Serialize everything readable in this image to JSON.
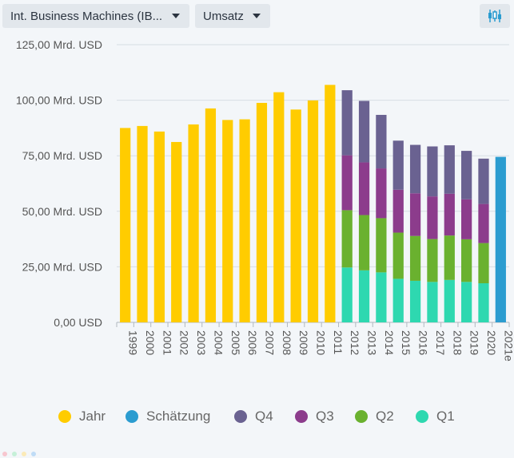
{
  "toolbar": {
    "company_label": "Int. Business Machines (IB...",
    "metric_label": "Umsatz",
    "settings_icon": "candlestick-chart-icon"
  },
  "colors": {
    "Jahr": "#ffcc00",
    "Schätzung": "#2b9cd0",
    "Q4": "#6a6291",
    "Q3": "#8c3c8c",
    "Q2": "#6ab12f",
    "Q1": "#2ed8b0",
    "grid": "#d6dde4",
    "text": "#555555"
  },
  "chart_data": {
    "type": "bar",
    "stacked": true,
    "ylim": [
      0,
      125
    ],
    "y_ticks": [
      {
        "value": 0,
        "label": "0,00 USD"
      },
      {
        "value": 25,
        "label": "25,00 Mrd. USD"
      },
      {
        "value": 50,
        "label": "50,00 Mrd. USD"
      },
      {
        "value": 75,
        "label": "75,00 Mrd. USD"
      },
      {
        "value": 100,
        "label": "100,00 Mrd. USD"
      },
      {
        "value": 125,
        "label": "125,00 Mrd. USD"
      }
    ],
    "categories": [
      "1999",
      "2000",
      "2001",
      "2002",
      "2003",
      "2004",
      "2005",
      "2006",
      "2007",
      "2008",
      "2009",
      "2010",
      "2011",
      "2012",
      "2013",
      "2014",
      "2015",
      "2016",
      "2017",
      "2018",
      "2019",
      "2020",
      "2021e"
    ],
    "series": [
      {
        "name": "Jahr",
        "values": [
          87.5,
          88.4,
          85.9,
          81.2,
          89.1,
          96.3,
          91.1,
          91.4,
          98.8,
          103.6,
          95.8,
          99.9,
          106.9,
          null,
          null,
          null,
          null,
          null,
          null,
          null,
          null,
          null,
          null
        ]
      },
      {
        "name": "Q1",
        "values": [
          null,
          null,
          null,
          null,
          null,
          null,
          null,
          null,
          null,
          null,
          null,
          null,
          null,
          24.7,
          23.4,
          22.5,
          19.6,
          18.7,
          18.2,
          19.1,
          18.2,
          17.6,
          null
        ]
      },
      {
        "name": "Q2",
        "values": [
          null,
          null,
          null,
          null,
          null,
          null,
          null,
          null,
          null,
          null,
          null,
          null,
          null,
          25.8,
          24.9,
          24.4,
          20.8,
          20.2,
          19.3,
          20.0,
          19.2,
          18.1,
          null
        ]
      },
      {
        "name": "Q3",
        "values": [
          null,
          null,
          null,
          null,
          null,
          null,
          null,
          null,
          null,
          null,
          null,
          null,
          null,
          24.7,
          23.7,
          22.4,
          19.3,
          19.2,
          19.2,
          18.8,
          18.0,
          17.6,
          null
        ]
      },
      {
        "name": "Q4",
        "values": [
          null,
          null,
          null,
          null,
          null,
          null,
          null,
          null,
          null,
          null,
          null,
          null,
          null,
          29.3,
          27.7,
          24.1,
          22.1,
          21.8,
          22.5,
          21.8,
          21.8,
          20.4,
          null
        ]
      },
      {
        "name": "Schätzung",
        "values": [
          null,
          null,
          null,
          null,
          null,
          null,
          null,
          null,
          null,
          null,
          null,
          null,
          null,
          null,
          null,
          null,
          null,
          null,
          null,
          null,
          null,
          null,
          74.5
        ]
      }
    ],
    "legend": [
      "Jahr",
      "Schätzung",
      "Q4",
      "Q3",
      "Q2",
      "Q1"
    ],
    "legend_placement": "bottom",
    "grid": true
  }
}
